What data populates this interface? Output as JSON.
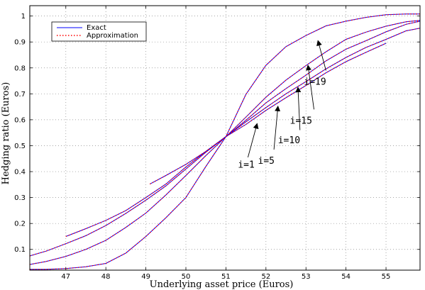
{
  "chart_data": {
    "type": "line",
    "xlabel": "Underlying asset price (Euros)",
    "ylabel": "Hedging ratio (Euros)",
    "xlim": [
      46.1,
      55.85
    ],
    "ylim": [
      0.02,
      1.04
    ],
    "xticks": [
      47,
      48,
      49,
      50,
      51,
      52,
      53,
      54,
      55
    ],
    "yticks": [
      0.1,
      0.2,
      0.3,
      0.4,
      0.5,
      0.6,
      0.7,
      0.8,
      0.9,
      1
    ],
    "grid": true,
    "legend": {
      "placement": "top-left",
      "entries": [
        {
          "label": "Exact",
          "color": "#0000ff",
          "style": "solid"
        },
        {
          "label": "Approximation",
          "color": "#ff0000",
          "style": "dotted"
        }
      ]
    },
    "series": [
      {
        "name": "i=1",
        "x": [
          49.1,
          49.5,
          50.0,
          50.5,
          51.0,
          51.5,
          52.0,
          52.5,
          53.0,
          53.5,
          54.0,
          54.5,
          55.0
        ],
        "y": [
          0.352,
          0.385,
          0.428,
          0.478,
          0.535,
          0.582,
          0.636,
          0.685,
          0.732,
          0.781,
          0.824,
          0.86,
          0.895
        ]
      },
      {
        "name": "i=5",
        "x": [
          47.0,
          47.5,
          48.0,
          48.5,
          49.0,
          49.5,
          50.0,
          50.5,
          51.0,
          51.5,
          52.0,
          52.5,
          53.0,
          53.5,
          54.0,
          54.5,
          55.0,
          55.5,
          55.85
        ],
        "y": [
          0.15,
          0.18,
          0.212,
          0.25,
          0.3,
          0.352,
          0.418,
          0.478,
          0.535,
          0.592,
          0.647,
          0.7,
          0.747,
          0.796,
          0.84,
          0.879,
          0.91,
          0.943,
          0.953
        ]
      },
      {
        "name": "i=10",
        "x": [
          46.1,
          46.5,
          47.0,
          47.5,
          48.0,
          48.5,
          49.0,
          49.5,
          50.0,
          50.5,
          51.0,
          51.5,
          52.0,
          52.5,
          53.0,
          53.5,
          54.0,
          54.5,
          55.0,
          55.5,
          55.85
        ],
        "y": [
          0.075,
          0.093,
          0.122,
          0.153,
          0.192,
          0.239,
          0.29,
          0.345,
          0.41,
          0.475,
          0.535,
          0.598,
          0.665,
          0.72,
          0.772,
          0.827,
          0.872,
          0.905,
          0.939,
          0.968,
          0.98
        ]
      },
      {
        "name": "i=15",
        "x": [
          46.1,
          46.5,
          47.0,
          47.5,
          48.0,
          48.5,
          49.0,
          49.5,
          50.0,
          50.5,
          51.0,
          51.5,
          52.0,
          52.5,
          53.0,
          53.5,
          54.0,
          54.5,
          55.0,
          55.5,
          55.85
        ],
        "y": [
          0.042,
          0.053,
          0.073,
          0.1,
          0.135,
          0.185,
          0.24,
          0.31,
          0.385,
          0.462,
          0.535,
          0.61,
          0.687,
          0.753,
          0.809,
          0.862,
          0.91,
          0.938,
          0.961,
          0.978,
          0.983
        ]
      },
      {
        "name": "i=19",
        "x": [
          46.1,
          46.5,
          47.0,
          47.5,
          48.0,
          48.5,
          49.0,
          49.5,
          50.0,
          50.5,
          51.0,
          51.5,
          52.0,
          52.5,
          53.0,
          53.5,
          54.0,
          54.5,
          55.0,
          55.5,
          55.85
        ],
        "y": [
          0.023,
          0.023,
          0.026,
          0.033,
          0.046,
          0.086,
          0.15,
          0.222,
          0.3,
          0.42,
          0.535,
          0.698,
          0.81,
          0.882,
          0.925,
          0.962,
          0.98,
          0.995,
          1.005,
          1.008,
          1.008
        ]
      }
    ],
    "annotations": [
      {
        "label": "i=1",
        "text_x": 51.3,
        "text_y": 0.415,
        "arrow_from": [
          51.55,
          0.455
        ],
        "arrow_to": [
          51.78,
          0.585
        ]
      },
      {
        "label": "i=5",
        "text_x": 51.8,
        "text_y": 0.43,
        "arrow_from": [
          52.2,
          0.485
        ],
        "arrow_to": [
          52.3,
          0.652
        ]
      },
      {
        "label": "i=10",
        "text_x": 52.3,
        "text_y": 0.51,
        "arrow_from": [
          52.85,
          0.56
        ],
        "arrow_to": [
          52.8,
          0.725
        ]
      },
      {
        "label": "i=15",
        "text_x": 52.6,
        "text_y": 0.585,
        "arrow_from": [
          53.2,
          0.64
        ],
        "arrow_to": [
          53.05,
          0.81
        ]
      },
      {
        "label": "i=19",
        "text_x": 52.95,
        "text_y": 0.735,
        "arrow_from": [
          53.5,
          0.79
        ],
        "arrow_to": [
          53.3,
          0.905
        ]
      }
    ]
  }
}
